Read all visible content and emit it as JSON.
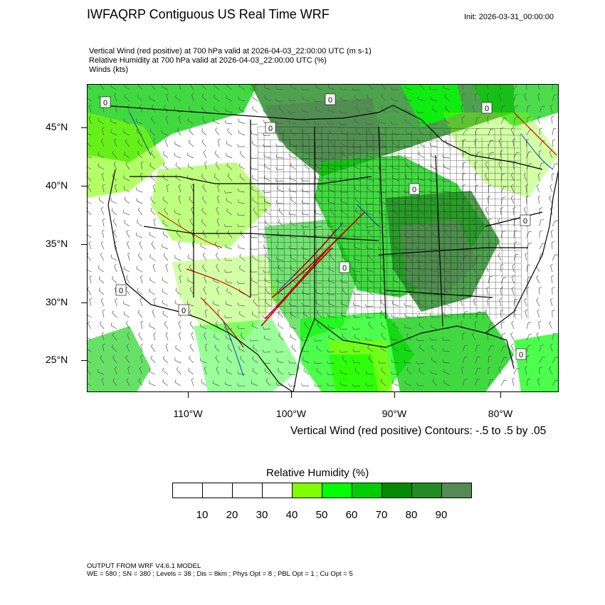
{
  "header": {
    "title": "IWFAQRP Contiguous US Real Time WRF",
    "init": "Init: 2026-03-31_00:00:00"
  },
  "fields": [
    "Vertical Wind (red positive) at 700 hPa valid at 2026-04-03_22:00:00 UTC   (m s-1)",
    "Relative Humidity at 700 hPa valid at 2026-04-03_22:00:00 UTC   (%)",
    "Winds   (kts)"
  ],
  "map": {
    "lat_labels": [
      "45°N",
      "40°N",
      "35°N",
      "30°N",
      "25°N"
    ],
    "lon_labels": [
      "110°W",
      "100°W",
      "90°W",
      "80°W"
    ],
    "contour_labels": [
      "0",
      "0",
      "0",
      "0",
      "0",
      "0",
      "0",
      "0",
      "0",
      "0"
    ],
    "colors": {
      "rh_50": "#80ff00",
      "rh_60": "#00ff00",
      "rh_70": "#00cd00",
      "rh_80": "#008b00",
      "rh_90": "#228b22",
      "rh_100": "#548b54",
      "updraft": "#cc0000",
      "downdraft": "#1a33cc"
    }
  },
  "contour_note": "Vertical Wind (red positive) Contours: -.5 to .5 by .05",
  "colorbar": {
    "title": "Relative Humidity  (%)",
    "labels": [
      "10",
      "20",
      "30",
      "40",
      "50",
      "60",
      "70",
      "80",
      "90"
    ],
    "colors": [
      "#ffffff",
      "#ffffff",
      "#ffffff",
      "#ffffff",
      "#80ff00",
      "#00ff00",
      "#00cd00",
      "#008b00",
      "#228b22",
      "#548b54"
    ]
  },
  "footer": {
    "line1": "OUTPUT FROM WRF V4.6.1 MODEL",
    "line2": "WE = 580 ; SN = 380 ; Levels = 38 ; Dis = 8km ; Phys Opt = 8 ; PBL Opt = 1 ; Cu Opt = 5"
  }
}
